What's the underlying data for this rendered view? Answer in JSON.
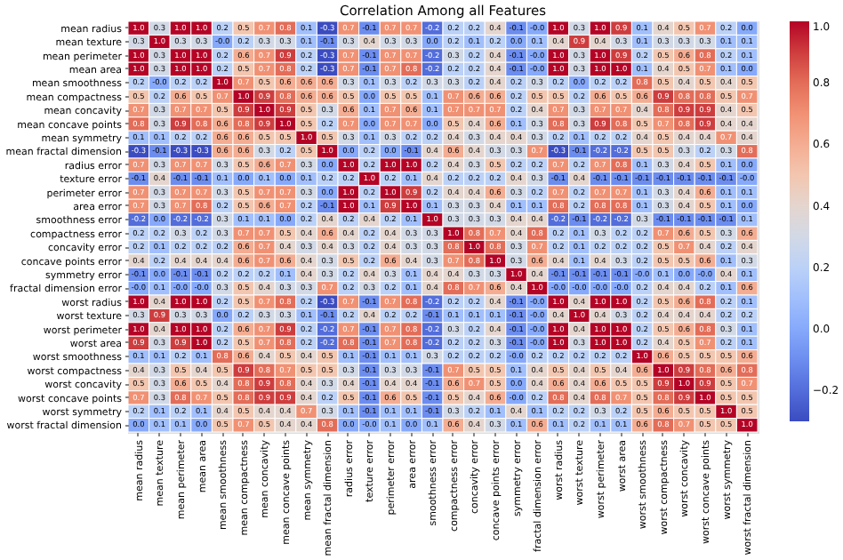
{
  "chart_data": {
    "type": "heatmap",
    "title": "Correlation Among all Features",
    "categories": [
      "mean radius",
      "mean texture",
      "mean perimeter",
      "mean area",
      "mean smoothness",
      "mean compactness",
      "mean concavity",
      "mean concave points",
      "mean symmetry",
      "mean fractal dimension",
      "radius error",
      "texture error",
      "perimeter error",
      "area error",
      "smoothness error",
      "compactness error",
      "concavity error",
      "concave points error",
      "symmetry error",
      "fractal dimension error",
      "worst radius",
      "worst texture",
      "worst perimeter",
      "worst area",
      "worst smoothness",
      "worst compactness",
      "worst concavity",
      "worst concave points",
      "worst symmetry",
      "worst fractal dimension"
    ],
    "y_categories": [
      "mean radius",
      "mean texture",
      "mean perimeter",
      "mean area",
      "mean smoothness",
      "mean compactness",
      "mean concavity",
      "mean concave points",
      "mean symmetry",
      "mean fractal dimension",
      "radius error",
      "texture error",
      "perimeter error",
      "area error",
      "smoothness error",
      "compactness error",
      "concavity error",
      "concave points error",
      "symmetry error",
      "fractal dimension error",
      "worst radius",
      "worst texture",
      "worst perimeter",
      "worst area",
      "worst smoothness",
      "worst compactness",
      "worst concavity",
      "worst concave points",
      "worst symmetry",
      "worst fractal dimension"
    ],
    "cells": [
      [
        1.0,
        0.3,
        1.0,
        1.0,
        0.2,
        0.5,
        0.7,
        0.8,
        0.1,
        -0.3,
        0.7,
        -0.1,
        0.7,
        0.7,
        -0.2,
        0.2,
        0.2,
        0.4,
        -0.1,
        -0.0,
        1.0,
        0.3,
        1.0,
        0.9,
        0.1,
        0.4,
        0.5,
        0.7,
        0.2,
        0.0
      ],
      [
        0.3,
        1.0,
        0.3,
        0.3,
        -0.0,
        0.2,
        0.3,
        0.3,
        0.1,
        -0.1,
        0.3,
        0.4,
        0.3,
        0.3,
        0.0,
        0.2,
        0.1,
        0.2,
        0.0,
        0.1,
        0.4,
        0.9,
        0.4,
        0.3,
        0.1,
        0.3,
        0.3,
        0.3,
        0.1,
        0.1
      ],
      [
        1.0,
        0.3,
        1.0,
        1.0,
        0.2,
        0.6,
        0.7,
        0.9,
        0.2,
        -0.3,
        0.7,
        -0.1,
        0.7,
        0.7,
        -0.2,
        0.3,
        0.2,
        0.4,
        -0.1,
        -0.0,
        1.0,
        0.3,
        1.0,
        0.9,
        0.2,
        0.5,
        0.6,
        0.8,
        0.2,
        0.1
      ],
      [
        1.0,
        0.3,
        1.0,
        1.0,
        0.2,
        0.5,
        0.7,
        0.8,
        0.2,
        -0.3,
        0.7,
        -0.1,
        0.7,
        0.8,
        -0.2,
        0.2,
        0.2,
        0.4,
        -0.1,
        -0.0,
        1.0,
        0.3,
        1.0,
        1.0,
        0.1,
        0.4,
        0.5,
        0.7,
        0.1,
        0.0
      ],
      [
        0.2,
        -0.0,
        0.2,
        0.2,
        1.0,
        0.7,
        0.5,
        0.6,
        0.6,
        0.6,
        0.3,
        0.1,
        0.3,
        0.2,
        0.3,
        0.3,
        0.2,
        0.4,
        0.2,
        0.3,
        0.2,
        0.0,
        0.2,
        0.2,
        0.8,
        0.5,
        0.4,
        0.5,
        0.4,
        0.5
      ],
      [
        0.5,
        0.2,
        0.6,
        0.5,
        0.7,
        1.0,
        0.9,
        0.8,
        0.6,
        0.6,
        0.5,
        0.0,
        0.5,
        0.5,
        0.1,
        0.7,
        0.6,
        0.6,
        0.2,
        0.5,
        0.5,
        0.2,
        0.6,
        0.5,
        0.6,
        0.9,
        0.8,
        0.8,
        0.5,
        0.7
      ],
      [
        0.7,
        0.3,
        0.7,
        0.7,
        0.5,
        0.9,
        1.0,
        0.9,
        0.5,
        0.3,
        0.6,
        0.1,
        0.7,
        0.6,
        0.1,
        0.7,
        0.7,
        0.7,
        0.2,
        0.4,
        0.7,
        0.3,
        0.7,
        0.7,
        0.4,
        0.8,
        0.9,
        0.9,
        0.4,
        0.5
      ],
      [
        0.8,
        0.3,
        0.9,
        0.8,
        0.6,
        0.8,
        0.9,
        1.0,
        0.5,
        0.2,
        0.7,
        0.0,
        0.7,
        0.7,
        0.0,
        0.5,
        0.4,
        0.6,
        0.1,
        0.3,
        0.8,
        0.3,
        0.9,
        0.8,
        0.5,
        0.7,
        0.8,
        0.9,
        0.4,
        0.4
      ],
      [
        0.1,
        0.1,
        0.2,
        0.2,
        0.6,
        0.6,
        0.5,
        0.5,
        1.0,
        0.5,
        0.3,
        0.1,
        0.3,
        0.2,
        0.2,
        0.4,
        0.3,
        0.4,
        0.4,
        0.3,
        0.2,
        0.1,
        0.2,
        0.2,
        0.4,
        0.5,
        0.4,
        0.4,
        0.7,
        0.4
      ],
      [
        -0.3,
        -0.1,
        -0.3,
        -0.3,
        0.6,
        0.6,
        0.3,
        0.2,
        0.5,
        1.0,
        0.0,
        0.2,
        0.0,
        -0.1,
        0.4,
        0.6,
        0.4,
        0.3,
        0.3,
        0.7,
        -0.3,
        -0.1,
        -0.2,
        -0.2,
        0.5,
        0.5,
        0.3,
        0.2,
        0.3,
        0.8
      ],
      [
        0.7,
        0.3,
        0.7,
        0.7,
        0.3,
        0.5,
        0.6,
        0.7,
        0.3,
        0.0,
        1.0,
        0.2,
        1.0,
        1.0,
        0.2,
        0.4,
        0.3,
        0.5,
        0.2,
        0.2,
        0.7,
        0.2,
        0.7,
        0.8,
        0.1,
        0.3,
        0.4,
        0.5,
        0.1,
        0.0
      ],
      [
        -0.1,
        0.4,
        -0.1,
        -0.1,
        0.1,
        0.0,
        0.1,
        0.0,
        0.1,
        0.2,
        0.2,
        1.0,
        0.2,
        0.1,
        0.4,
        0.2,
        0.2,
        0.2,
        0.4,
        0.3,
        -0.1,
        0.4,
        -0.1,
        -0.1,
        -0.1,
        -0.1,
        -0.1,
        -0.1,
        -0.1,
        -0.0
      ],
      [
        0.7,
        0.3,
        0.7,
        0.7,
        0.3,
        0.5,
        0.7,
        0.7,
        0.3,
        0.0,
        1.0,
        0.2,
        1.0,
        0.9,
        0.2,
        0.4,
        0.4,
        0.6,
        0.3,
        0.2,
        0.7,
        0.2,
        0.7,
        0.7,
        0.1,
        0.3,
        0.4,
        0.6,
        0.1,
        0.1
      ],
      [
        0.7,
        0.3,
        0.7,
        0.8,
        0.2,
        0.5,
        0.6,
        0.7,
        0.2,
        -0.1,
        1.0,
        0.1,
        0.9,
        1.0,
        0.1,
        0.3,
        0.3,
        0.4,
        0.1,
        0.1,
        0.8,
        0.2,
        0.8,
        0.8,
        0.1,
        0.3,
        0.4,
        0.5,
        0.1,
        0.0
      ],
      [
        -0.2,
        0.0,
        -0.2,
        -0.2,
        0.3,
        0.1,
        0.1,
        0.0,
        0.2,
        0.4,
        0.2,
        0.4,
        0.2,
        0.1,
        1.0,
        0.3,
        0.3,
        0.3,
        0.4,
        0.4,
        -0.2,
        -0.1,
        -0.2,
        -0.2,
        0.3,
        -0.1,
        -0.1,
        -0.1,
        -0.1,
        0.1
      ],
      [
        0.2,
        0.2,
        0.3,
        0.2,
        0.3,
        0.7,
        0.7,
        0.5,
        0.4,
        0.6,
        0.4,
        0.2,
        0.4,
        0.3,
        0.3,
        1.0,
        0.8,
        0.7,
        0.4,
        0.8,
        0.2,
        0.1,
        0.3,
        0.2,
        0.2,
        0.7,
        0.6,
        0.5,
        0.3,
        0.6
      ],
      [
        0.2,
        0.1,
        0.2,
        0.2,
        0.2,
        0.6,
        0.7,
        0.4,
        0.3,
        0.4,
        0.3,
        0.2,
        0.4,
        0.3,
        0.3,
        0.8,
        1.0,
        0.8,
        0.3,
        0.7,
        0.2,
        0.1,
        0.2,
        0.2,
        0.2,
        0.5,
        0.7,
        0.4,
        0.2,
        0.4
      ],
      [
        0.4,
        0.2,
        0.4,
        0.4,
        0.4,
        0.6,
        0.7,
        0.6,
        0.4,
        0.3,
        0.5,
        0.2,
        0.6,
        0.4,
        0.3,
        0.7,
        0.8,
        1.0,
        0.3,
        0.6,
        0.4,
        0.1,
        0.4,
        0.3,
        0.2,
        0.5,
        0.5,
        0.6,
        0.1,
        0.3
      ],
      [
        -0.1,
        0.0,
        -0.1,
        -0.1,
        0.2,
        0.2,
        0.2,
        0.1,
        0.4,
        0.3,
        0.2,
        0.4,
        0.3,
        0.1,
        0.4,
        0.4,
        0.3,
        0.3,
        1.0,
        0.4,
        -0.1,
        -0.1,
        -0.1,
        -0.1,
        -0.0,
        0.1,
        0.0,
        -0.0,
        0.4,
        0.1
      ],
      [
        -0.0,
        0.1,
        -0.0,
        -0.0,
        0.3,
        0.5,
        0.4,
        0.3,
        0.3,
        0.7,
        0.2,
        0.3,
        0.2,
        0.1,
        0.4,
        0.8,
        0.7,
        0.6,
        0.4,
        1.0,
        -0.0,
        -0.0,
        -0.0,
        -0.0,
        0.2,
        0.4,
        0.4,
        0.2,
        0.1,
        0.6
      ],
      [
        1.0,
        0.4,
        1.0,
        1.0,
        0.2,
        0.5,
        0.7,
        0.8,
        0.2,
        -0.3,
        0.7,
        -0.1,
        0.7,
        0.8,
        -0.2,
        0.2,
        0.2,
        0.4,
        -0.1,
        -0.0,
        1.0,
        0.4,
        1.0,
        1.0,
        0.2,
        0.5,
        0.6,
        0.8,
        0.2,
        0.1
      ],
      [
        0.3,
        0.9,
        0.3,
        0.3,
        0.0,
        0.2,
        0.3,
        0.3,
        0.1,
        -0.1,
        0.2,
        0.4,
        0.2,
        0.2,
        -0.1,
        0.1,
        0.1,
        0.1,
        -0.1,
        -0.0,
        0.4,
        1.0,
        0.4,
        0.3,
        0.2,
        0.4,
        0.4,
        0.4,
        0.2,
        0.2
      ],
      [
        1.0,
        0.4,
        1.0,
        1.0,
        0.2,
        0.6,
        0.7,
        0.9,
        0.2,
        -0.2,
        0.7,
        -0.1,
        0.7,
        0.8,
        -0.2,
        0.3,
        0.2,
        0.4,
        -0.1,
        -0.0,
        1.0,
        0.4,
        1.0,
        1.0,
        0.2,
        0.5,
        0.6,
        0.8,
        0.3,
        0.1
      ],
      [
        0.9,
        0.3,
        0.9,
        1.0,
        0.2,
        0.5,
        0.7,
        0.8,
        0.2,
        -0.2,
        0.8,
        -0.1,
        0.7,
        0.8,
        -0.2,
        0.2,
        0.2,
        0.3,
        -0.1,
        -0.0,
        1.0,
        0.3,
        1.0,
        1.0,
        0.2,
        0.4,
        0.5,
        0.7,
        0.2,
        0.1
      ],
      [
        0.1,
        0.1,
        0.2,
        0.1,
        0.8,
        0.6,
        0.4,
        0.5,
        0.4,
        0.5,
        0.1,
        -0.1,
        0.1,
        0.1,
        0.3,
        0.2,
        0.2,
        0.2,
        -0.0,
        0.2,
        0.2,
        0.2,
        0.2,
        0.2,
        1.0,
        0.6,
        0.5,
        0.5,
        0.5,
        0.6
      ],
      [
        0.4,
        0.3,
        0.5,
        0.4,
        0.5,
        0.9,
        0.8,
        0.7,
        0.5,
        0.5,
        0.3,
        -0.1,
        0.3,
        0.3,
        -0.1,
        0.7,
        0.5,
        0.5,
        0.1,
        0.4,
        0.5,
        0.4,
        0.5,
        0.4,
        0.6,
        1.0,
        0.9,
        0.8,
        0.6,
        0.8
      ],
      [
        0.5,
        0.3,
        0.6,
        0.5,
        0.4,
        0.8,
        0.9,
        0.8,
        0.4,
        0.3,
        0.4,
        -0.1,
        0.4,
        0.4,
        -0.1,
        0.6,
        0.7,
        0.5,
        0.0,
        0.4,
        0.6,
        0.4,
        0.6,
        0.5,
        0.5,
        0.9,
        1.0,
        0.9,
        0.5,
        0.7
      ],
      [
        0.7,
        0.3,
        0.8,
        0.7,
        0.5,
        0.8,
        0.9,
        0.9,
        0.4,
        0.2,
        0.5,
        -0.1,
        0.6,
        0.5,
        -0.1,
        0.5,
        0.4,
        0.6,
        -0.0,
        0.2,
        0.8,
        0.4,
        0.8,
        0.7,
        0.5,
        0.8,
        0.9,
        1.0,
        0.5,
        0.5
      ],
      [
        0.2,
        0.1,
        0.2,
        0.1,
        0.4,
        0.5,
        0.4,
        0.4,
        0.7,
        0.3,
        0.1,
        -0.1,
        0.1,
        0.1,
        -0.1,
        0.3,
        0.2,
        0.1,
        0.4,
        0.1,
        0.2,
        0.2,
        0.3,
        0.2,
        0.5,
        0.6,
        0.5,
        0.5,
        1.0,
        0.5
      ],
      [
        0.0,
        0.1,
        0.1,
        0.0,
        0.5,
        0.7,
        0.5,
        0.4,
        0.4,
        0.8,
        0.0,
        -0.0,
        0.1,
        0.0,
        0.1,
        0.6,
        0.4,
        0.3,
        0.1,
        0.6,
        0.1,
        0.2,
        0.1,
        0.1,
        0.6,
        0.8,
        0.7,
        0.5,
        0.5,
        1.0
      ]
    ],
    "cell_labels": [
      [
        "1.0",
        "0.3",
        "1.0",
        "1.0",
        "0.2",
        "0.5",
        "0.7",
        "0.8",
        "0.1",
        "-0.3",
        "0.7",
        "-0.1",
        "0.7",
        "0.7",
        "-0.2",
        "0.2",
        "0.2",
        "0.4",
        "-0.1",
        "-0.0",
        "1.0",
        "0.3",
        "1.0",
        "0.9",
        "0.1",
        "0.4",
        "0.5",
        "0.7",
        "0.2",
        "0.0"
      ],
      [
        "0.3",
        "1.0",
        "0.3",
        "0.3",
        "-0.0",
        "0.2",
        "0.3",
        "0.3",
        "0.1",
        "-0.1",
        "0.3",
        "0.4",
        "0.3",
        "0.3",
        "0.0",
        "0.2",
        "0.1",
        "0.2",
        "0.0",
        "0.1",
        "0.4",
        "0.9",
        "0.4",
        "0.3",
        "0.1",
        "0.3",
        "0.3",
        "0.3",
        "0.1",
        "0.1"
      ],
      [
        "1.0",
        "0.3",
        "1.0",
        "1.0",
        "0.2",
        "0.6",
        "0.7",
        "0.9",
        "0.2",
        "-0.3",
        "0.7",
        "-0.1",
        "0.7",
        "0.7",
        "-0.2",
        "0.3",
        "0.2",
        "0.4",
        "-0.1",
        "-0.0",
        "1.0",
        "0.3",
        "1.0",
        "0.9",
        "0.2",
        "0.5",
        "0.6",
        "0.8",
        "0.2",
        "0.1"
      ],
      [
        "1.0",
        "0.3",
        "1.0",
        "1.0",
        "0.2",
        "0.5",
        "0.7",
        "0.8",
        "0.2",
        "-0.3",
        "0.7",
        "-0.1",
        "0.7",
        "0.8",
        "-0.2",
        "0.2",
        "0.2",
        "0.4",
        "-0.1",
        "-0.0",
        "1.0",
        "0.3",
        "1.0",
        "1.0",
        "0.1",
        "0.4",
        "0.5",
        "0.7",
        "0.1",
        "0.0"
      ],
      [
        "0.2",
        "-0.0",
        "0.2",
        "0.2",
        "1.0",
        "0.7",
        "0.5",
        "0.6",
        "0.6",
        "0.6",
        "0.3",
        "0.1",
        "0.3",
        "0.2",
        "0.3",
        "0.3",
        "0.2",
        "0.4",
        "0.2",
        "0.3",
        "0.2",
        "0.0",
        "0.2",
        "0.2",
        "0.8",
        "0.5",
        "0.4",
        "0.5",
        "0.4",
        "0.5"
      ],
      [
        "0.5",
        "0.2",
        "0.6",
        "0.5",
        "0.7",
        "1.0",
        "0.9",
        "0.8",
        "0.6",
        "0.6",
        "0.5",
        "0.0",
        "0.5",
        "0.5",
        "0.1",
        "0.7",
        "0.6",
        "0.6",
        "0.2",
        "0.5",
        "0.5",
        "0.2",
        "0.6",
        "0.5",
        "0.6",
        "0.9",
        "0.8",
        "0.8",
        "0.5",
        "0.7"
      ],
      [
        "0.7",
        "0.3",
        "0.7",
        "0.7",
        "0.5",
        "0.9",
        "1.0",
        "0.9",
        "0.5",
        "0.3",
        "0.6",
        "0.1",
        "0.7",
        "0.6",
        "0.1",
        "0.7",
        "0.7",
        "0.7",
        "0.2",
        "0.4",
        "0.7",
        "0.3",
        "0.7",
        "0.7",
        "0.4",
        "0.8",
        "0.9",
        "0.9",
        "0.4",
        "0.5"
      ],
      [
        "0.8",
        "0.3",
        "0.9",
        "0.8",
        "0.6",
        "0.8",
        "0.9",
        "1.0",
        "0.5",
        "0.2",
        "0.7",
        "0.0",
        "0.7",
        "0.7",
        "0.0",
        "0.5",
        "0.4",
        "0.6",
        "0.1",
        "0.3",
        "0.8",
        "0.3",
        "0.9",
        "0.8",
        "0.5",
        "0.7",
        "0.8",
        "0.9",
        "0.4",
        "0.4"
      ],
      [
        "0.1",
        "0.1",
        "0.2",
        "0.2",
        "0.6",
        "0.6",
        "0.5",
        "0.5",
        "1.0",
        "0.5",
        "0.3",
        "0.1",
        "0.3",
        "0.2",
        "0.2",
        "0.4",
        "0.3",
        "0.4",
        "0.4",
        "0.3",
        "0.2",
        "0.1",
        "0.2",
        "0.2",
        "0.4",
        "0.5",
        "0.4",
        "0.4",
        "0.7",
        "0.4"
      ],
      [
        "-0.3",
        "-0.1",
        "-0.3",
        "-0.3",
        "0.6",
        "0.6",
        "0.3",
        "0.2",
        "0.5",
        "1.0",
        "0.0",
        "0.2",
        "0.0",
        "-0.1",
        "0.4",
        "0.6",
        "0.4",
        "0.3",
        "0.3",
        "0.7",
        "-0.3",
        "-0.1",
        "-0.2",
        "-0.2",
        "0.5",
        "0.5",
        "0.3",
        "0.2",
        "0.3",
        "0.8"
      ],
      [
        "0.7",
        "0.3",
        "0.7",
        "0.7",
        "0.3",
        "0.5",
        "0.6",
        "0.7",
        "0.3",
        "0.0",
        "1.0",
        "0.2",
        "1.0",
        "1.0",
        "0.2",
        "0.4",
        "0.3",
        "0.5",
        "0.2",
        "0.2",
        "0.7",
        "0.2",
        "0.7",
        "0.8",
        "0.1",
        "0.3",
        "0.4",
        "0.5",
        "0.1",
        "0.0"
      ],
      [
        "-0.1",
        "0.4",
        "-0.1",
        "-0.1",
        "0.1",
        "0.0",
        "0.1",
        "0.0",
        "0.1",
        "0.2",
        "0.2",
        "1.0",
        "0.2",
        "0.1",
        "0.4",
        "0.2",
        "0.2",
        "0.2",
        "0.4",
        "0.3",
        "-0.1",
        "0.4",
        "-0.1",
        "-0.1",
        "-0.1",
        "-0.1",
        "-0.1",
        "-0.1",
        "-0.1",
        "-0.0"
      ],
      [
        "0.7",
        "0.3",
        "0.7",
        "0.7",
        "0.3",
        "0.5",
        "0.7",
        "0.7",
        "0.3",
        "0.0",
        "1.0",
        "0.2",
        "1.0",
        "0.9",
        "0.2",
        "0.4",
        "0.4",
        "0.6",
        "0.3",
        "0.2",
        "0.7",
        "0.2",
        "0.7",
        "0.7",
        "0.1",
        "0.3",
        "0.4",
        "0.6",
        "0.1",
        "0.1"
      ],
      [
        "0.7",
        "0.3",
        "0.7",
        "0.8",
        "0.2",
        "0.5",
        "0.6",
        "0.7",
        "0.2",
        "-0.1",
        "1.0",
        "0.1",
        "0.9",
        "1.0",
        "0.1",
        "0.3",
        "0.3",
        "0.4",
        "0.1",
        "0.1",
        "0.8",
        "0.2",
        "0.8",
        "0.8",
        "0.1",
        "0.3",
        "0.4",
        "0.5",
        "0.1",
        "0.0"
      ],
      [
        "-0.2",
        "0.0",
        "-0.2",
        "-0.2",
        "0.3",
        "0.1",
        "0.1",
        "0.0",
        "0.2",
        "0.4",
        "0.2",
        "0.4",
        "0.2",
        "0.1",
        "1.0",
        "0.3",
        "0.3",
        "0.3",
        "0.4",
        "0.4",
        "-0.2",
        "-0.1",
        "-0.2",
        "-0.2",
        "0.3",
        "-0.1",
        "-0.1",
        "-0.1",
        "-0.1",
        "0.1"
      ],
      [
        "0.2",
        "0.2",
        "0.3",
        "0.2",
        "0.3",
        "0.7",
        "0.7",
        "0.5",
        "0.4",
        "0.6",
        "0.4",
        "0.2",
        "0.4",
        "0.3",
        "0.3",
        "1.0",
        "0.8",
        "0.7",
        "0.4",
        "0.8",
        "0.2",
        "0.1",
        "0.3",
        "0.2",
        "0.2",
        "0.7",
        "0.6",
        "0.5",
        "0.3",
        "0.6"
      ],
      [
        "0.2",
        "0.1",
        "0.2",
        "0.2",
        "0.2",
        "0.6",
        "0.7",
        "0.4",
        "0.3",
        "0.4",
        "0.3",
        "0.2",
        "0.4",
        "0.3",
        "0.3",
        "0.8",
        "1.0",
        "0.8",
        "0.3",
        "0.7",
        "0.2",
        "0.1",
        "0.2",
        "0.2",
        "0.2",
        "0.5",
        "0.7",
        "0.4",
        "0.2",
        "0.4"
      ],
      [
        "0.4",
        "0.2",
        "0.4",
        "0.4",
        "0.4",
        "0.6",
        "0.7",
        "0.6",
        "0.4",
        "0.3",
        "0.5",
        "0.2",
        "0.6",
        "0.4",
        "0.3",
        "0.7",
        "0.8",
        "1.0",
        "0.3",
        "0.6",
        "0.4",
        "0.1",
        "0.4",
        "0.3",
        "0.2",
        "0.5",
        "0.5",
        "0.6",
        "0.1",
        "0.3"
      ],
      [
        "-0.1",
        "0.0",
        "-0.1",
        "-0.1",
        "0.2",
        "0.2",
        "0.2",
        "0.1",
        "0.4",
        "0.3",
        "0.2",
        "0.4",
        "0.3",
        "0.1",
        "0.4",
        "0.4",
        "0.3",
        "0.3",
        "1.0",
        "0.4",
        "-0.1",
        "-0.1",
        "-0.1",
        "-0.1",
        "-0.0",
        "0.1",
        "0.0",
        "-0.0",
        "0.4",
        "0.1"
      ],
      [
        "-0.0",
        "0.1",
        "-0.0",
        "-0.0",
        "0.3",
        "0.5",
        "0.4",
        "0.3",
        "0.3",
        "0.7",
        "0.2",
        "0.3",
        "0.2",
        "0.1",
        "0.4",
        "0.8",
        "0.7",
        "0.6",
        "0.4",
        "1.0",
        "-0.0",
        "-0.0",
        "-0.0",
        "-0.0",
        "0.2",
        "0.4",
        "0.4",
        "0.2",
        "0.1",
        "0.6"
      ],
      [
        "1.0",
        "0.4",
        "1.0",
        "1.0",
        "0.2",
        "0.5",
        "0.7",
        "0.8",
        "0.2",
        "-0.3",
        "0.7",
        "-0.1",
        "0.7",
        "0.8",
        "-0.2",
        "0.2",
        "0.2",
        "0.4",
        "-0.1",
        "-0.0",
        "1.0",
        "0.4",
        "1.0",
        "1.0",
        "0.2",
        "0.5",
        "0.6",
        "0.8",
        "0.2",
        "0.1"
      ],
      [
        "0.3",
        "0.9",
        "0.3",
        "0.3",
        "0.0",
        "0.2",
        "0.3",
        "0.3",
        "0.1",
        "-0.1",
        "0.2",
        "0.4",
        "0.2",
        "0.2",
        "-0.1",
        "0.1",
        "0.1",
        "0.1",
        "-0.1",
        "-0.0",
        "0.4",
        "1.0",
        "0.4",
        "0.3",
        "0.2",
        "0.4",
        "0.4",
        "0.4",
        "0.2",
        "0.2"
      ],
      [
        "1.0",
        "0.4",
        "1.0",
        "1.0",
        "0.2",
        "0.6",
        "0.7",
        "0.9",
        "0.2",
        "-0.2",
        "0.7",
        "-0.1",
        "0.7",
        "0.8",
        "-0.2",
        "0.3",
        "0.2",
        "0.4",
        "-0.1",
        "-0.0",
        "1.0",
        "0.4",
        "1.0",
        "1.0",
        "0.2",
        "0.5",
        "0.6",
        "0.8",
        "0.3",
        "0.1"
      ],
      [
        "0.9",
        "0.3",
        "0.9",
        "1.0",
        "0.2",
        "0.5",
        "0.7",
        "0.8",
        "0.2",
        "-0.2",
        "0.8",
        "-0.1",
        "0.7",
        "0.8",
        "-0.2",
        "0.2",
        "0.2",
        "0.3",
        "-0.1",
        "-0.0",
        "1.0",
        "0.3",
        "1.0",
        "1.0",
        "0.2",
        "0.4",
        "0.5",
        "0.7",
        "0.2",
        "0.1"
      ],
      [
        "0.1",
        "0.1",
        "0.2",
        "0.1",
        "0.8",
        "0.6",
        "0.4",
        "0.5",
        "0.4",
        "0.5",
        "0.1",
        "-0.1",
        "0.1",
        "0.1",
        "0.3",
        "0.2",
        "0.2",
        "0.2",
        "-0.0",
        "0.2",
        "0.2",
        "0.2",
        "0.2",
        "0.2",
        "1.0",
        "0.6",
        "0.5",
        "0.5",
        "0.5",
        "0.6"
      ],
      [
        "0.4",
        "0.3",
        "0.5",
        "0.4",
        "0.5",
        "0.9",
        "0.8",
        "0.7",
        "0.5",
        "0.5",
        "0.3",
        "-0.1",
        "0.3",
        "0.3",
        "-0.1",
        "0.7",
        "0.5",
        "0.5",
        "0.1",
        "0.4",
        "0.5",
        "0.4",
        "0.5",
        "0.4",
        "0.6",
        "1.0",
        "0.9",
        "0.8",
        "0.6",
        "0.8"
      ],
      [
        "0.5",
        "0.3",
        "0.6",
        "0.5",
        "0.4",
        "0.8",
        "0.9",
        "0.8",
        "0.4",
        "0.3",
        "0.4",
        "-0.1",
        "0.4",
        "0.4",
        "-0.1",
        "0.6",
        "0.7",
        "0.5",
        "0.0",
        "0.4",
        "0.6",
        "0.4",
        "0.6",
        "0.5",
        "0.5",
        "0.9",
        "1.0",
        "0.9",
        "0.5",
        "0.7"
      ],
      [
        "0.7",
        "0.3",
        "0.8",
        "0.7",
        "0.5",
        "0.8",
        "0.9",
        "0.9",
        "0.4",
        "0.2",
        "0.5",
        "-0.1",
        "0.6",
        "0.5",
        "-0.1",
        "0.5",
        "0.4",
        "0.6",
        "-0.0",
        "0.2",
        "0.8",
        "0.4",
        "0.8",
        "0.7",
        "0.5",
        "0.8",
        "0.9",
        "1.0",
        "0.5",
        "0.5"
      ],
      [
        "0.2",
        "0.1",
        "0.2",
        "0.1",
        "0.4",
        "0.5",
        "0.4",
        "0.4",
        "0.7",
        "0.3",
        "0.1",
        "-0.1",
        "0.1",
        "0.1",
        "-0.1",
        "0.3",
        "0.2",
        "0.1",
        "0.4",
        "0.1",
        "0.2",
        "0.2",
        "0.3",
        "0.2",
        "0.5",
        "0.6",
        "0.5",
        "0.5",
        "1.0",
        "0.5"
      ],
      [
        "0.0",
        "0.1",
        "0.1",
        "0.0",
        "0.5",
        "0.7",
        "0.5",
        "0.4",
        "0.4",
        "0.8",
        "0.0",
        "-0.0",
        "0.1",
        "0.0",
        "0.1",
        "0.6",
        "0.4",
        "0.3",
        "0.1",
        "0.6",
        "0.1",
        "0.2",
        "0.1",
        "0.1",
        "0.6",
        "0.8",
        "0.7",
        "0.5",
        "0.5",
        "1.0"
      ]
    ],
    "clim": [
      -0.3,
      1.0
    ],
    "cticks": [
      {
        "value": -0.2,
        "label": "−0.2"
      },
      {
        "value": 0.0,
        "label": "0.0"
      },
      {
        "value": 0.2,
        "label": "0.2"
      },
      {
        "value": 0.4,
        "label": "0.4"
      },
      {
        "value": 0.6,
        "label": "0.6"
      },
      {
        "value": 0.8,
        "label": "0.8"
      },
      {
        "value": 1.0,
        "label": "1.0"
      }
    ],
    "data_labels": true
  }
}
